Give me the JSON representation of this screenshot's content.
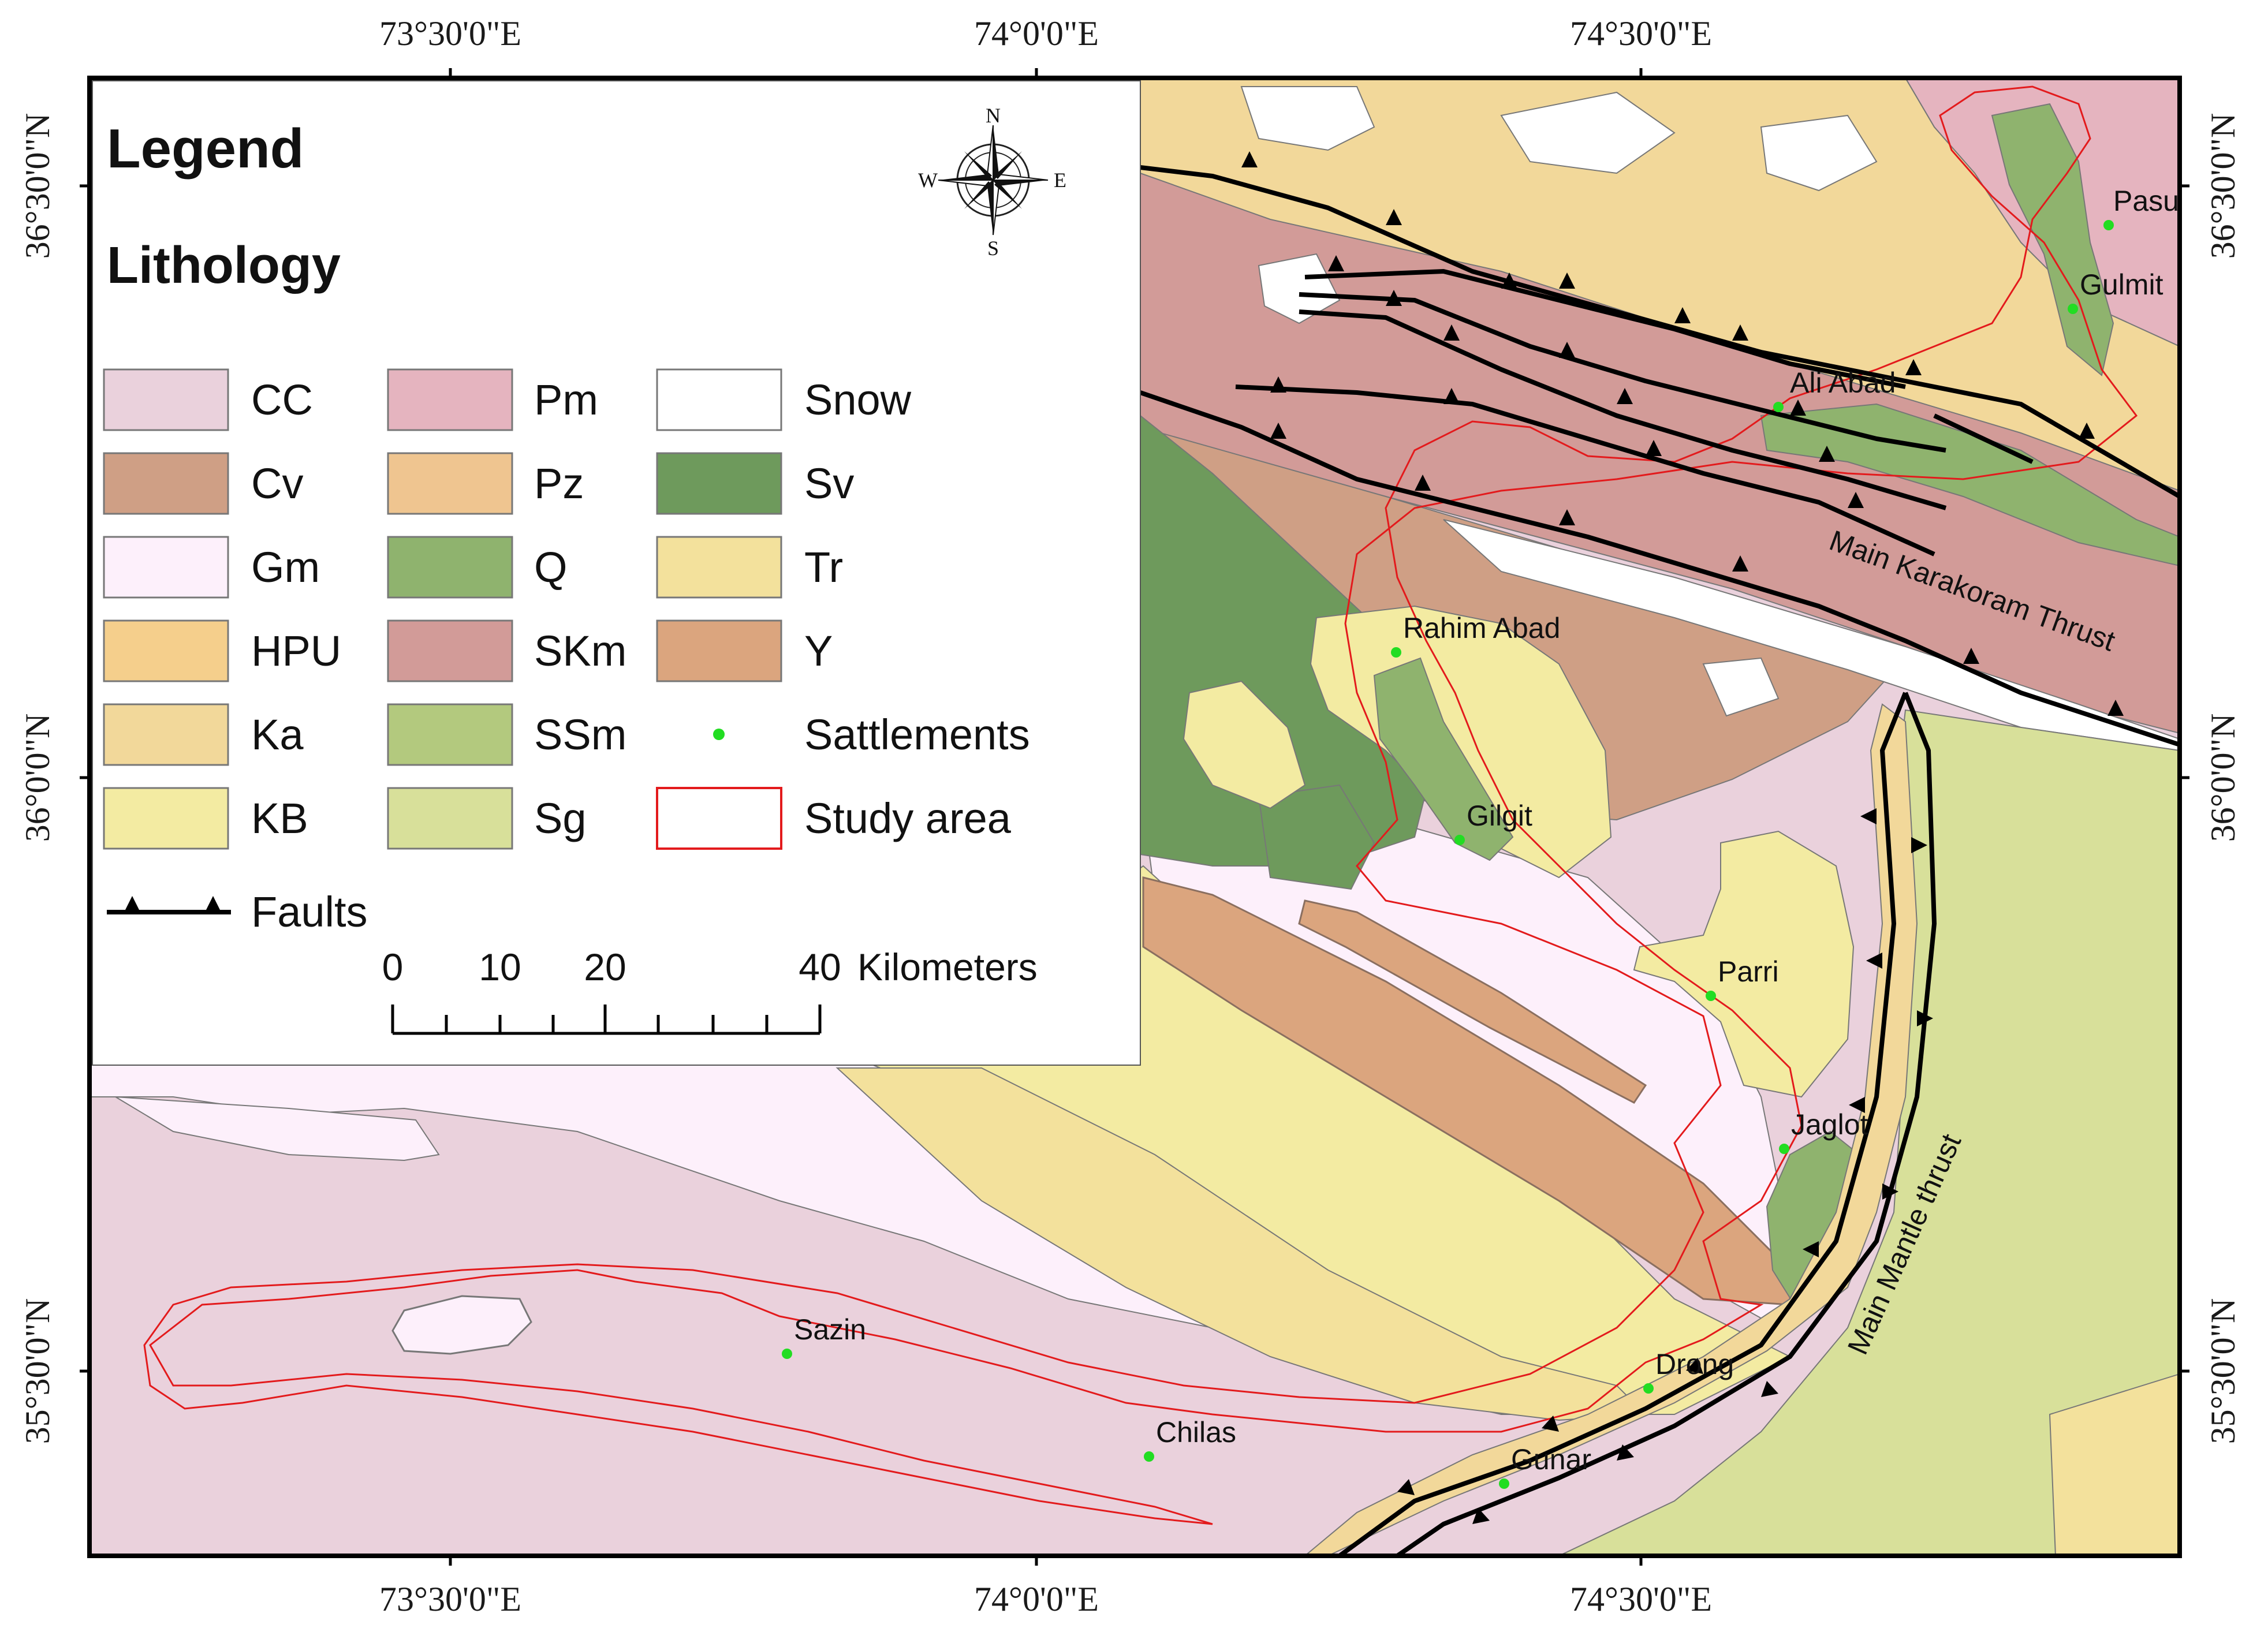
{
  "map": {
    "lon_labels": [
      "73°30'0\"E",
      "74°0'0\"E",
      "74°30'0\"E"
    ],
    "lat_labels": [
      "36°30'0\"N",
      "36°0'0\"N",
      "35°30'0\"N"
    ]
  },
  "legend": {
    "title": "Legend",
    "subtitle": "Lithology",
    "units": [
      {
        "code": "CC",
        "color": "#ead1dc"
      },
      {
        "code": "Cv",
        "color": "#cf9f85"
      },
      {
        "code": "Gm",
        "color": "#fdf0fb"
      },
      {
        "code": "HPU",
        "color": "#f5cf8c"
      },
      {
        "code": "Ka",
        "color": "#f2d89a"
      },
      {
        "code": "KB",
        "color": "#f3eba2"
      },
      {
        "code": "Pm",
        "color": "#e5b4bf"
      },
      {
        "code": "Pz",
        "color": "#efc590"
      },
      {
        "code": "Q",
        "color": "#8fb36e"
      },
      {
        "code": "SKm",
        "color": "#d29b98"
      },
      {
        "code": "SSm",
        "color": "#b3c97e"
      },
      {
        "code": "Sg",
        "color": "#d8e09a"
      },
      {
        "code": "Snow",
        "color": "#ffffff"
      },
      {
        "code": "Sv",
        "color": "#6e9a5c"
      },
      {
        "code": "Tr",
        "color": "#f3e19c"
      },
      {
        "code": "Y",
        "color": "#dba57e"
      }
    ],
    "settlements_label": "Sattlements",
    "study_area_label": "Study area",
    "faults_label": "Faults",
    "scale": {
      "ticks": [
        "0",
        "10",
        "20",
        "40"
      ],
      "unit": "Kilometers"
    },
    "compass": {
      "n": "N",
      "s": "S",
      "e": "E",
      "w": "W"
    }
  },
  "settlements": [
    {
      "name": "Pasu"
    },
    {
      "name": "Gulmit"
    },
    {
      "name": "Ali Abad"
    },
    {
      "name": "Rahim Abad"
    },
    {
      "name": "Gilgit"
    },
    {
      "name": "Parri"
    },
    {
      "name": "Jaglot"
    },
    {
      "name": "Sazin"
    },
    {
      "name": "Drong"
    },
    {
      "name": "Chilas"
    },
    {
      "name": "Gunar"
    }
  ],
  "fault_names": {
    "mkt": "Main Karakoram Thrust",
    "mmt": "Main Mantle thrust"
  },
  "colors": {
    "fault": "#000000",
    "study_area": "#e31a1c",
    "settlement": "#22dd22"
  }
}
